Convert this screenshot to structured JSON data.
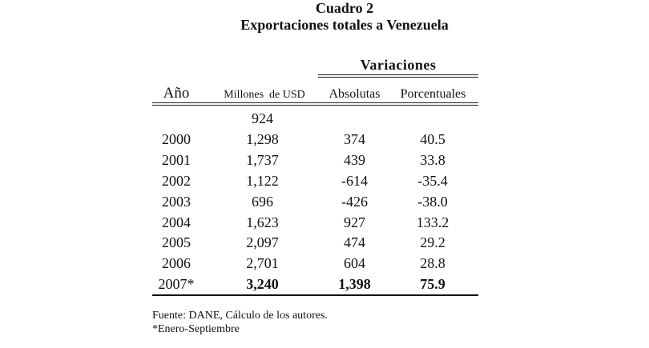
{
  "title": "Cuadro 2",
  "subtitle": "Exportaciones totales a Venezuela",
  "group_header": "Variaciones",
  "headers": {
    "year": "Año",
    "value": "Millones  de USD",
    "abs": "Absolutas",
    "pct": "Porcentuales"
  },
  "rows": [
    {
      "year": "",
      "value": "924",
      "abs": "",
      "pct": ""
    },
    {
      "year": "2000",
      "value": "1,298",
      "abs": "374",
      "pct": "40.5"
    },
    {
      "year": "2001",
      "value": "1,737",
      "abs": "439",
      "pct": "33.8"
    },
    {
      "year": "2002",
      "value": "1,122",
      "abs": "-614",
      "pct": "-35.4"
    },
    {
      "year": "2003",
      "value": "696",
      "abs": "-426",
      "pct": "-38.0"
    },
    {
      "year": "2004",
      "value": "1,623",
      "abs": "927",
      "pct": "133.2"
    },
    {
      "year": "2005",
      "value": "2,097",
      "abs": "474",
      "pct": "29.2"
    },
    {
      "year": "2006",
      "value": "2,701",
      "abs": "604",
      "pct": "28.8"
    },
    {
      "year": "2007*",
      "value": "3,240",
      "abs": "1,398",
      "pct": "75.9"
    }
  ],
  "footnotes": [
    "Fuente: DANE, Cálculo de los autores.",
    "*Enero-Septiembre"
  ]
}
